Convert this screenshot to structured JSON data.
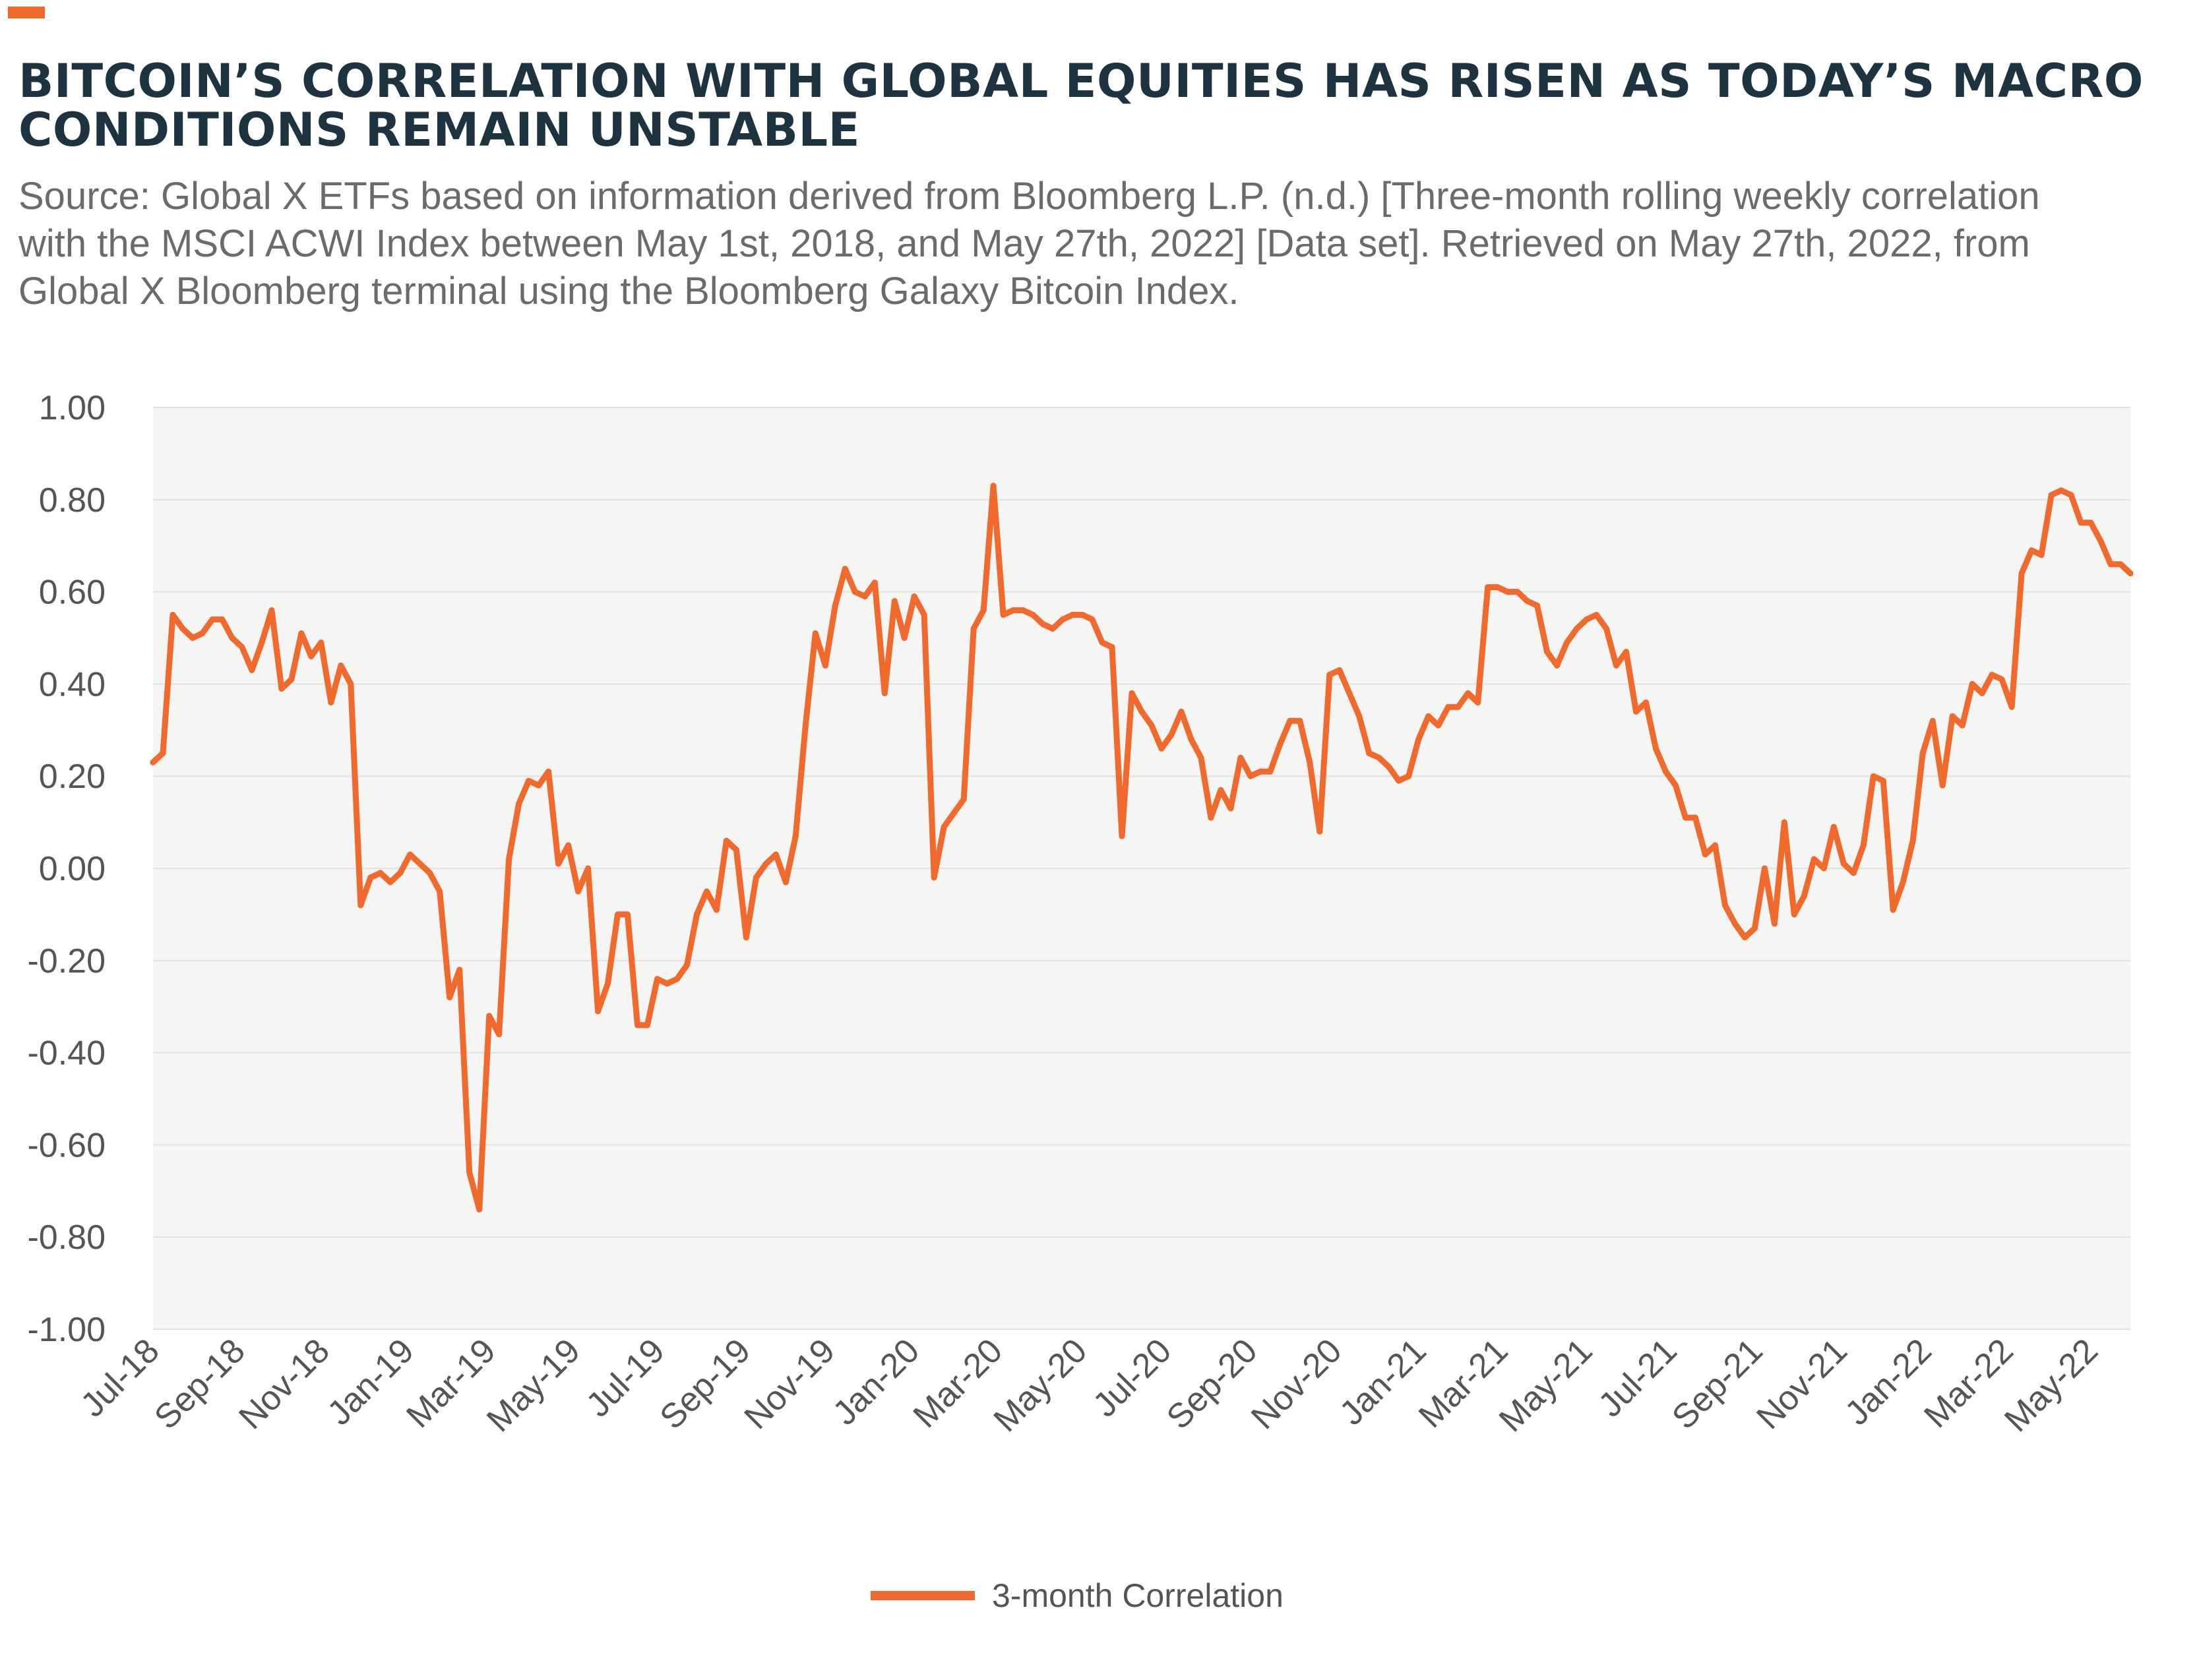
{
  "title": "BITCOIN’S CORRELATION WITH GLOBAL EQUITIES HAS RISEN AS TODAY’S MACRO CONDITIONS REMAIN UNSTABLE",
  "subtitle_lines": [
    "Source: Global X ETFs based on information derived from Bloomberg L.P. (n.d.) [Three-month rolling weekly correlation",
    "with the MSCI ACWI Index between May 1st, 2018, and May 27th, 2022] [Data set]. Retrieved on May 27th, 2022, from",
    "Global X Bloomberg terminal using the Bloomberg Galaxy Bitcoin Index."
  ],
  "colors": {
    "accent": "#f06a2e",
    "line": "#f06a2e",
    "title": "#1d3440",
    "plot_background": "#f5f5f3",
    "grid": "#e2e2e2"
  },
  "chart_data": {
    "type": "line",
    "xlabel": "",
    "ylabel": "",
    "ylim": [
      -1.0,
      1.0
    ],
    "y_ticks": [
      "1.00",
      "0.80",
      "0.60",
      "0.40",
      "0.20",
      "0.00",
      "-0.20",
      "-0.40",
      "-0.60",
      "-0.80",
      "-1.00"
    ],
    "x_tick_labels": [
      "Jul-18",
      "Sep-18",
      "Nov-18",
      "Jan-19",
      "Mar-19",
      "May-19",
      "Jul-19",
      "Sep-19",
      "Nov-19",
      "Jan-20",
      "Mar-20",
      "May-20",
      "Jul-20",
      "Sep-20",
      "Nov-20",
      "Jan-21",
      "Mar-21",
      "May-21",
      "Jul-21",
      "Sep-21",
      "Nov-21",
      "Jan-22",
      "Mar-22",
      "May-22"
    ],
    "x_start": "2018-06-29",
    "x_end": "2022-05-27",
    "grid": true,
    "legend_position": "bottom-center",
    "series": [
      {
        "name": "3-month Correlation",
        "values": [
          0.23,
          0.25,
          0.55,
          0.52,
          0.5,
          0.51,
          0.54,
          0.54,
          0.5,
          0.48,
          0.43,
          0.49,
          0.56,
          0.39,
          0.41,
          0.51,
          0.46,
          0.49,
          0.36,
          0.44,
          0.4,
          -0.08,
          -0.02,
          -0.01,
          -0.03,
          -0.01,
          0.03,
          0.01,
          -0.01,
          -0.05,
          -0.28,
          -0.22,
          -0.66,
          -0.74,
          -0.32,
          -0.36,
          0.02,
          0.14,
          0.19,
          0.18,
          0.21,
          0.01,
          0.05,
          -0.05,
          0.0,
          -0.31,
          -0.25,
          -0.1,
          -0.1,
          -0.34,
          -0.34,
          -0.24,
          -0.25,
          -0.24,
          -0.21,
          -0.1,
          -0.05,
          -0.09,
          0.06,
          0.04,
          -0.15,
          -0.02,
          0.01,
          0.03,
          -0.03,
          0.07,
          0.31,
          0.51,
          0.44,
          0.57,
          0.65,
          0.6,
          0.59,
          0.62,
          0.38,
          0.58,
          0.5,
          0.59,
          0.55,
          -0.02,
          0.09,
          0.12,
          0.15,
          0.52,
          0.56,
          0.83,
          0.55,
          0.56,
          0.56,
          0.55,
          0.53,
          0.52,
          0.54,
          0.55,
          0.55,
          0.54,
          0.49,
          0.48,
          0.07,
          0.38,
          0.34,
          0.31,
          0.26,
          0.29,
          0.34,
          0.28,
          0.24,
          0.11,
          0.17,
          0.13,
          0.24,
          0.2,
          0.21,
          0.21,
          0.27,
          0.32,
          0.32,
          0.23,
          0.08,
          0.42,
          0.43,
          0.38,
          0.33,
          0.25,
          0.24,
          0.22,
          0.19,
          0.2,
          0.28,
          0.33,
          0.31,
          0.35,
          0.35,
          0.38,
          0.36,
          0.61,
          0.61,
          0.6,
          0.6,
          0.58,
          0.57,
          0.47,
          0.44,
          0.49,
          0.52,
          0.54,
          0.55,
          0.52,
          0.44,
          0.47,
          0.34,
          0.36,
          0.26,
          0.21,
          0.18,
          0.11,
          0.11,
          0.03,
          0.05,
          -0.08,
          -0.12,
          -0.15,
          -0.13,
          0.0,
          -0.12,
          0.1,
          -0.1,
          -0.06,
          0.02,
          0.0,
          0.09,
          0.01,
          -0.01,
          0.05,
          0.2,
          0.19,
          -0.09,
          -0.03,
          0.06,
          0.25,
          0.32,
          0.18,
          0.33,
          0.31,
          0.4,
          0.38,
          0.42,
          0.41,
          0.35,
          0.64,
          0.69,
          0.68,
          0.81,
          0.82,
          0.81,
          0.75,
          0.75,
          0.71,
          0.66,
          0.66,
          0.64
        ]
      }
    ]
  }
}
